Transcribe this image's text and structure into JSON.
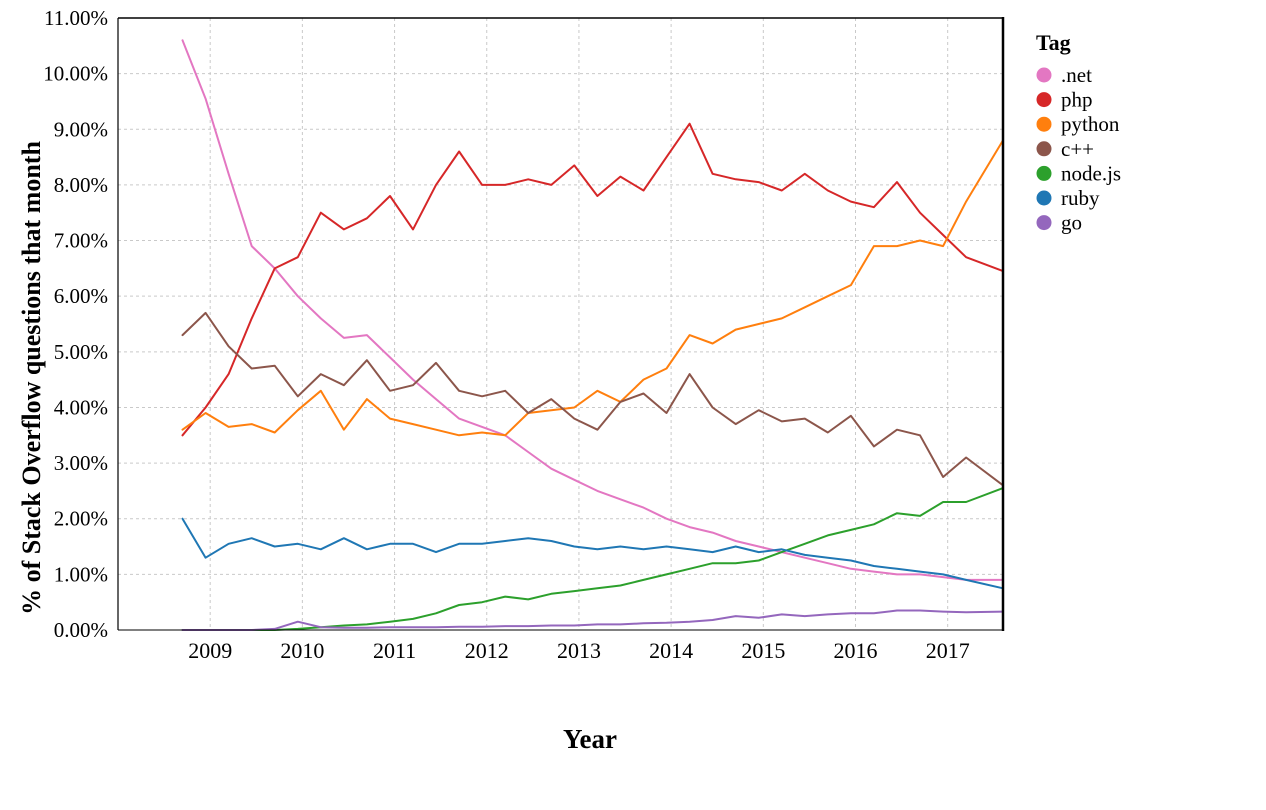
{
  "chart_data": {
    "type": "line",
    "title": "",
    "xlabel": "Year",
    "ylabel": "% of Stack Overflow questions that month",
    "legend_title": "Tag",
    "legend_position": "right",
    "grid": true,
    "x_domain": [
      2008.0,
      2017.6
    ],
    "y_domain": [
      0,
      11
    ],
    "x_ticks": [
      2009,
      2010,
      2011,
      2012,
      2013,
      2014,
      2015,
      2016,
      2017
    ],
    "y_ticks": [
      0,
      1,
      2,
      3,
      4,
      5,
      6,
      7,
      8,
      9,
      10,
      11
    ],
    "y_tick_format": "percent2",
    "x": [
      2008.7,
      2008.95,
      2009.2,
      2009.45,
      2009.7,
      2009.95,
      2010.2,
      2010.45,
      2010.7,
      2010.95,
      2011.2,
      2011.45,
      2011.7,
      2011.95,
      2012.2,
      2012.45,
      2012.7,
      2012.95,
      2013.2,
      2013.45,
      2013.7,
      2013.95,
      2014.2,
      2014.45,
      2014.7,
      2014.95,
      2015.2,
      2015.45,
      2015.7,
      2015.95,
      2016.2,
      2016.45,
      2016.7,
      2016.95,
      2017.2,
      2017.6
    ],
    "series": [
      {
        "name": ".net",
        "color": "#e377c2",
        "values": [
          10.6,
          9.55,
          8.2,
          6.9,
          6.5,
          6.0,
          5.6,
          5.25,
          5.3,
          4.9,
          4.5,
          4.15,
          3.8,
          3.65,
          3.5,
          3.2,
          2.9,
          2.7,
          2.5,
          2.35,
          2.2,
          2.0,
          1.85,
          1.75,
          1.6,
          1.5,
          1.4,
          1.3,
          1.2,
          1.1,
          1.05,
          1.0,
          1.0,
          0.95,
          0.9,
          0.9
        ]
      },
      {
        "name": "php",
        "color": "#d62728",
        "values": [
          3.5,
          4.0,
          4.6,
          5.6,
          6.5,
          6.7,
          7.5,
          7.2,
          7.4,
          7.8,
          7.2,
          8.0,
          8.6,
          8.0,
          8.0,
          8.1,
          8.0,
          8.35,
          7.8,
          8.15,
          7.9,
          8.5,
          9.1,
          8.2,
          8.1,
          8.05,
          7.9,
          8.2,
          7.9,
          7.7,
          7.6,
          8.05,
          7.5,
          7.1,
          6.7,
          6.45
        ]
      },
      {
        "name": "python",
        "color": "#ff7f0e",
        "values": [
          3.6,
          3.9,
          3.65,
          3.7,
          3.55,
          3.95,
          4.3,
          3.6,
          4.15,
          3.8,
          3.7,
          3.6,
          3.5,
          3.55,
          3.5,
          3.9,
          3.95,
          4.0,
          4.3,
          4.1,
          4.5,
          4.7,
          5.3,
          5.15,
          5.4,
          5.5,
          5.6,
          5.8,
          6.0,
          6.2,
          6.9,
          6.9,
          7.0,
          6.9,
          7.7,
          8.8
        ]
      },
      {
        "name": "c++",
        "color": "#8c564b",
        "values": [
          5.3,
          5.7,
          5.1,
          4.7,
          4.75,
          4.2,
          4.6,
          4.4,
          4.85,
          4.3,
          4.4,
          4.8,
          4.3,
          4.2,
          4.3,
          3.9,
          4.15,
          3.8,
          3.6,
          4.1,
          4.25,
          3.9,
          4.6,
          4.0,
          3.7,
          3.95,
          3.75,
          3.8,
          3.55,
          3.85,
          3.3,
          3.6,
          3.5,
          2.75,
          3.1,
          2.6
        ]
      },
      {
        "name": "node.js",
        "color": "#2ca02c",
        "values": [
          0.0,
          0.0,
          0.0,
          0.0,
          0.0,
          0.02,
          0.05,
          0.08,
          0.1,
          0.15,
          0.2,
          0.3,
          0.45,
          0.5,
          0.6,
          0.55,
          0.65,
          0.7,
          0.75,
          0.8,
          0.9,
          1.0,
          1.1,
          1.2,
          1.2,
          1.25,
          1.4,
          1.55,
          1.7,
          1.8,
          1.9,
          2.1,
          2.05,
          2.3,
          2.3,
          2.55
        ]
      },
      {
        "name": "ruby",
        "color": "#1f77b4",
        "values": [
          2.0,
          1.3,
          1.55,
          1.65,
          1.5,
          1.55,
          1.45,
          1.65,
          1.45,
          1.55,
          1.55,
          1.4,
          1.55,
          1.55,
          1.6,
          1.65,
          1.6,
          1.5,
          1.45,
          1.5,
          1.45,
          1.5,
          1.45,
          1.4,
          1.5,
          1.4,
          1.45,
          1.35,
          1.3,
          1.25,
          1.15,
          1.1,
          1.05,
          1.0,
          0.9,
          0.75
        ]
      },
      {
        "name": "go",
        "color": "#9467bd",
        "values": [
          0.0,
          0.0,
          0.0,
          0.0,
          0.02,
          0.15,
          0.05,
          0.04,
          0.04,
          0.05,
          0.05,
          0.05,
          0.06,
          0.06,
          0.07,
          0.07,
          0.08,
          0.08,
          0.1,
          0.1,
          0.12,
          0.13,
          0.15,
          0.18,
          0.25,
          0.22,
          0.28,
          0.25,
          0.28,
          0.3,
          0.3,
          0.35,
          0.35,
          0.33,
          0.32,
          0.33
        ]
      }
    ]
  }
}
